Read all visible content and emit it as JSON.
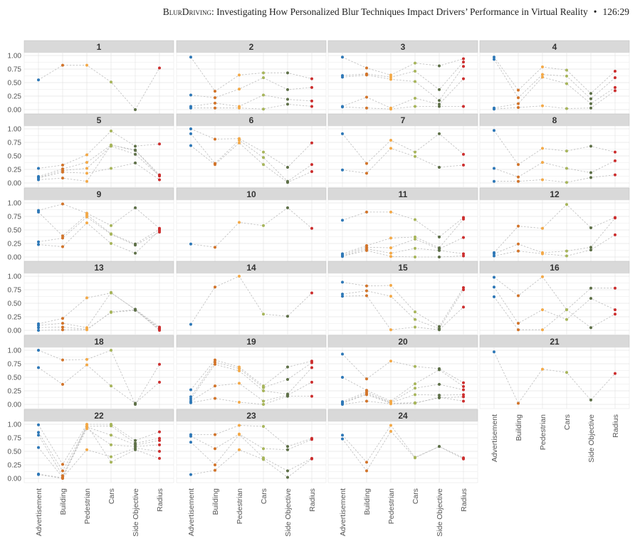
{
  "header": {
    "running_head_prefix": "BlurDriving",
    "running_head_rest": ": Investigating How Personalized Blur Techniques Impact Drivers’ Performance in Virtual Reality",
    "bullet": "•",
    "page_ref": "126:29"
  },
  "chart_data": {
    "type": "scatter",
    "subtype": "faceted parallel-coordinates dot plot",
    "categories": [
      "Advertisement",
      "Building",
      "Pedestrian",
      "Cars",
      "Side Objective",
      "Radius"
    ],
    "category_colors": [
      "#2e78b7",
      "#d2742a",
      "#f3a948",
      "#a7b55b",
      "#5e7048",
      "#cc2e2e"
    ],
    "y_ticks": [
      "0.00",
      "0.25",
      "0.50",
      "0.75",
      "1.00"
    ],
    "ylim": [
      0,
      1
    ],
    "grid": true,
    "connector_style": "dashed light grey",
    "facets": [
      {
        "label": "1",
        "lines": [
          [
            0.55,
            0.82,
            0.82,
            0.51,
            0.0,
            0.77
          ]
        ]
      },
      {
        "label": "2",
        "lines": [
          [
            0.97,
            0.34,
            0.64,
            0.68,
            0.68,
            0.57
          ],
          [
            0.27,
            0.22,
            0.38,
            0.59,
            0.37,
            0.41
          ],
          [
            0.06,
            0.12,
            0.06,
            0.27,
            0.19,
            0.16
          ],
          [
            0.03,
            0.03,
            0.03,
            0.01,
            0.1,
            0.06
          ]
        ]
      },
      {
        "label": "3",
        "lines": [
          [
            0.97,
            0.77,
            0.64,
            0.86,
            0.81,
            0.94
          ],
          [
            0.63,
            0.66,
            0.6,
            0.71,
            0.37,
            0.88
          ],
          [
            0.6,
            0.64,
            0.56,
            0.52,
            0.17,
            0.8
          ],
          [
            0.06,
            0.23,
            0.03,
            0.21,
            0.1,
            0.57
          ],
          [
            0.05,
            0.03,
            0.01,
            0.06,
            0.06,
            0.06
          ]
        ]
      },
      {
        "label": "4",
        "lines": [
          [
            0.97,
            0.36,
            0.79,
            0.73,
            0.3,
            0.71
          ],
          [
            0.93,
            0.22,
            0.65,
            0.62,
            0.2,
            0.59
          ],
          [
            0.03,
            0.11,
            0.6,
            0.48,
            0.11,
            0.41
          ],
          [
            0.01,
            0.04,
            0.07,
            0.02,
            0.03,
            0.35
          ]
        ]
      },
      {
        "label": "5",
        "lines": [
          [
            0.27,
            0.33,
            0.52,
            0.96,
            0.68,
            0.72
          ],
          [
            0.12,
            0.26,
            0.38,
            0.7,
            0.61,
            0.15
          ],
          [
            0.1,
            0.23,
            0.27,
            0.68,
            0.53,
            0.13
          ],
          [
            0.09,
            0.2,
            0.18,
            0.27,
            0.37,
            0.06
          ],
          [
            0.06,
            0.09,
            0.03,
            0.7,
            0.6,
            0.13
          ]
        ]
      },
      {
        "label": "6",
        "lines": [
          [
            1.0,
            0.81,
            0.82,
            0.57,
            0.29,
            0.74
          ],
          [
            0.91,
            0.36,
            0.79,
            0.47,
            0.03,
            0.34
          ],
          [
            0.69,
            0.34,
            0.74,
            0.34,
            0.01,
            0.21
          ]
        ]
      },
      {
        "label": "7",
        "lines": [
          [
            0.91,
            0.36,
            0.79,
            0.57,
            0.91,
            0.53
          ],
          [
            0.24,
            0.18,
            0.64,
            0.49,
            0.29,
            0.33
          ]
        ]
      },
      {
        "label": "8",
        "lines": [
          [
            0.97,
            0.34,
            0.64,
            0.59,
            0.68,
            0.57
          ],
          [
            0.27,
            0.11,
            0.38,
            0.27,
            0.19,
            0.41
          ],
          [
            0.03,
            0.03,
            0.06,
            0.01,
            0.1,
            0.15
          ]
        ]
      },
      {
        "label": "9",
        "lines": [
          [
            0.86,
            0.98,
            0.81,
            0.58,
            0.91,
            0.53
          ],
          [
            0.83,
            0.39,
            0.78,
            0.43,
            0.24,
            0.51
          ],
          [
            0.28,
            0.35,
            0.74,
            0.42,
            0.22,
            0.46
          ],
          [
            0.23,
            0.19,
            0.63,
            0.25,
            0.07,
            0.49
          ]
        ]
      },
      {
        "label": "10",
        "lines": [
          [
            0.24,
            0.18,
            0.64,
            0.58,
            0.91,
            0.53
          ]
        ]
      },
      {
        "label": "11",
        "lines": [
          [
            0.68,
            0.83,
            0.83,
            0.69,
            0.37,
            0.73
          ],
          [
            0.06,
            0.21,
            0.35,
            0.37,
            0.17,
            0.7
          ],
          [
            0.04,
            0.18,
            0.17,
            0.33,
            0.15,
            0.36
          ],
          [
            0.02,
            0.15,
            0.07,
            0.16,
            0.12,
            0.06
          ],
          [
            0.01,
            0.12,
            0.01,
            0.0,
            0.0,
            0.02
          ]
        ]
      },
      {
        "label": "12",
        "lines": [
          [
            0.08,
            0.57,
            0.53,
            0.97,
            0.54,
            0.73
          ],
          [
            0.06,
            0.24,
            0.08,
            0.11,
            0.18,
            0.72
          ],
          [
            0.02,
            0.11,
            0.06,
            0.02,
            0.13,
            0.41
          ]
        ]
      },
      {
        "label": "13",
        "lines": [
          [
            0.12,
            0.22,
            0.6,
            0.69,
            0.39,
            0.06
          ],
          [
            0.09,
            0.13,
            0.05,
            0.7,
            0.38,
            0.04
          ],
          [
            0.05,
            0.06,
            0.02,
            0.33,
            0.37,
            0.02
          ],
          [
            0.0,
            0.01,
            0.01,
            0.34,
            0.38,
            0.0
          ]
        ]
      },
      {
        "label": "14",
        "lines": [
          [
            0.11,
            0.8,
            1.0,
            0.3,
            0.26,
            0.69
          ]
        ]
      },
      {
        "label": "15",
        "lines": [
          [
            0.89,
            0.82,
            0.83,
            0.34,
            0.07,
            0.79
          ],
          [
            0.67,
            0.73,
            0.63,
            0.2,
            0.03,
            0.75
          ],
          [
            0.63,
            0.64,
            0.01,
            0.06,
            0.01,
            0.43
          ]
        ]
      },
      {
        "label": "16",
        "lines": [
          [
            0.98,
            0.64,
            0.99,
            0.38,
            0.78,
            0.78
          ],
          [
            0.8,
            0.13,
            0.38,
            0.2,
            0.59,
            0.38
          ],
          [
            0.62,
            0.01,
            0.01,
            0.38,
            0.05,
            0.3
          ]
        ]
      },
      {
        "label": "18",
        "lines": [
          [
            1.0,
            0.82,
            0.83,
            1.0,
            0.0,
            0.74
          ],
          [
            0.68,
            0.37,
            0.73,
            0.34,
            0.02,
            0.41
          ]
        ]
      },
      {
        "label": "19",
        "lines": [
          [
            0.27,
            0.82,
            0.69,
            0.34,
            0.69,
            0.8
          ],
          [
            0.14,
            0.78,
            0.66,
            0.31,
            0.46,
            0.77
          ],
          [
            0.1,
            0.74,
            0.62,
            0.25,
            0.19,
            0.68
          ],
          [
            0.06,
            0.34,
            0.39,
            0.06,
            0.17,
            0.41
          ],
          [
            0.03,
            0.11,
            0.04,
            0.0,
            0.15,
            0.15
          ]
        ]
      },
      {
        "label": "20",
        "lines": [
          [
            0.93,
            0.47,
            0.8,
            0.7,
            0.66,
            0.4
          ],
          [
            0.5,
            0.26,
            0.06,
            0.38,
            0.64,
            0.33
          ],
          [
            0.05,
            0.23,
            0.04,
            0.3,
            0.37,
            0.27
          ],
          [
            0.03,
            0.2,
            0.03,
            0.18,
            0.17,
            0.18
          ],
          [
            0.02,
            0.18,
            0.02,
            0.03,
            0.12,
            0.14
          ],
          [
            0.0,
            0.06,
            0.01,
            0.02,
            0.13,
            0.06
          ]
        ]
      },
      {
        "label": "21",
        "lines": [
          [
            0.97,
            0.02,
            0.65,
            0.59,
            0.08,
            0.57
          ]
        ]
      },
      {
        "label": "22",
        "lines": [
          [
            0.99,
            0.26,
            1.0,
            1.0,
            0.7,
            0.86
          ],
          [
            0.85,
            0.14,
            0.96,
            0.97,
            0.65,
            0.74
          ],
          [
            0.8,
            0.05,
            0.95,
            0.8,
            0.62,
            0.7
          ],
          [
            0.57,
            0.02,
            0.92,
            0.62,
            0.59,
            0.62
          ],
          [
            0.08,
            0.01,
            0.53,
            0.4,
            0.56,
            0.5
          ],
          [
            0.07,
            0.0,
            0.99,
            0.3,
            0.53,
            0.37
          ]
        ]
      },
      {
        "label": "23",
        "lines": [
          [
            0.81,
            0.81,
            0.98,
            0.96,
            0.59,
            0.74
          ],
          [
            0.78,
            0.55,
            0.82,
            0.55,
            0.53,
            0.72
          ],
          [
            0.67,
            0.25,
            0.81,
            0.38,
            0.14,
            0.37
          ],
          [
            0.07,
            0.15,
            0.53,
            0.35,
            0.02,
            0.36
          ]
        ]
      },
      {
        "label": "24",
        "lines": [
          [
            0.8,
            0.3,
            0.98,
            0.39,
            0.59,
            0.38
          ],
          [
            0.73,
            0.14,
            0.87,
            0.38,
            0.59,
            0.36
          ]
        ]
      }
    ]
  }
}
